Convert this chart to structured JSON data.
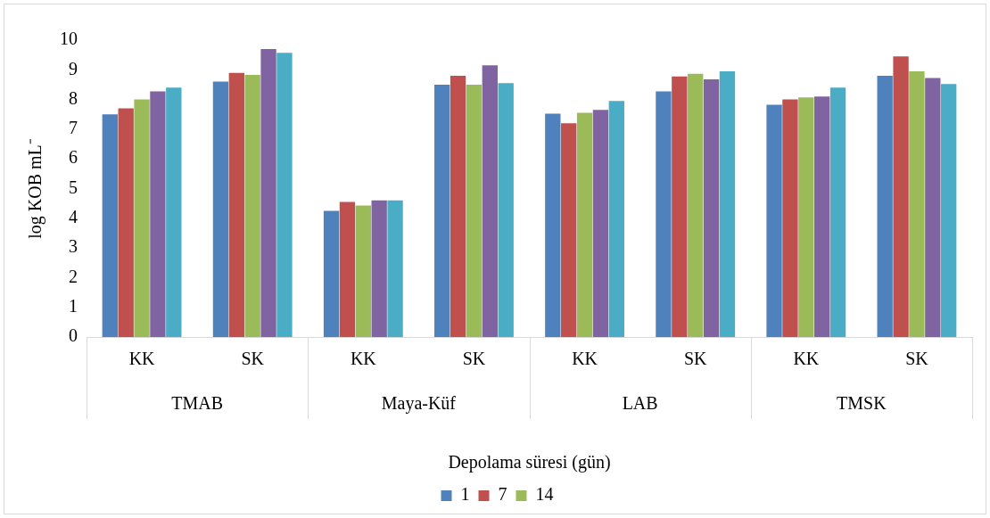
{
  "chart_data": {
    "type": "bar",
    "ylabel": "log KOB mL⁻",
    "xlabel": "Depolama süresi (gün)",
    "categories": [
      "KK",
      "SK",
      "KK",
      "SK",
      "KK",
      "SK",
      "KK",
      "SK"
    ],
    "annotations": [
      "TMAB",
      "Maya-Küf",
      "LAB",
      "TMSK"
    ],
    "series": [
      {
        "name": "1",
        "color": "#4f81bd",
        "values": [
          7.5,
          8.6,
          4.25,
          8.5,
          7.52,
          8.27,
          7.82,
          8.8
        ]
      },
      {
        "name": "7",
        "color": "#c0504d",
        "values": [
          7.7,
          8.9,
          4.55,
          8.8,
          7.2,
          8.78,
          8.0,
          9.45
        ]
      },
      {
        "name": "14",
        "color": "#9bbb59",
        "values": [
          8.0,
          8.83,
          4.43,
          8.5,
          7.55,
          8.87,
          8.07,
          8.95
        ]
      },
      {
        "color": "#8064a2",
        "values": [
          8.27,
          9.7,
          4.6,
          9.15,
          7.65,
          8.68,
          8.1,
          8.72
        ]
      },
      {
        "color": "#4bacc6",
        "values": [
          8.4,
          9.57,
          4.6,
          8.55,
          7.95,
          8.95,
          8.4,
          8.52
        ]
      }
    ],
    "ylim": [
      0,
      10
    ],
    "yticks": [
      0,
      1,
      2,
      3,
      4,
      5,
      6,
      7,
      8,
      9,
      10
    ],
    "grid": false,
    "legend": "bottom"
  }
}
